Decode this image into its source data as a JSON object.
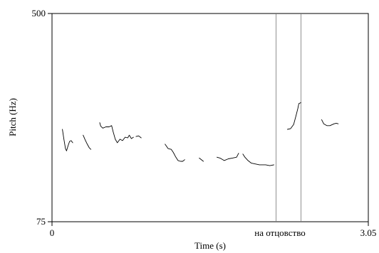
{
  "chart_data": {
    "type": "line",
    "ylabel": "Pitch (Hz)",
    "xlabel": "Time (s)",
    "xlim": [
      0,
      3.05
    ],
    "ylim": [
      75,
      500
    ],
    "x_tick_labels": [
      "0",
      "3.05"
    ],
    "y_tick_labels": [
      "75",
      "500"
    ],
    "annotation": "на отцовство",
    "selection_markers_s": [
      2.16,
      2.4
    ],
    "series": [
      {
        "points": [
          [
            0.1,
            174
          ],
          [
            0.115,
            159
          ],
          [
            0.13,
            146
          ],
          [
            0.14,
            143
          ],
          [
            0.155,
            150
          ],
          [
            0.17,
            156
          ],
          [
            0.185,
            157
          ],
          [
            0.2,
            154
          ]
        ]
      },
      {
        "points": [
          [
            0.3,
            165
          ],
          [
            0.32,
            158
          ],
          [
            0.34,
            152
          ],
          [
            0.36,
            147
          ],
          [
            0.375,
            145
          ]
        ]
      },
      {
        "points": [
          [
            0.46,
            185
          ],
          [
            0.47,
            179
          ],
          [
            0.49,
            176
          ],
          [
            0.52,
            178
          ],
          [
            0.55,
            178
          ],
          [
            0.575,
            180
          ]
        ]
      },
      {
        "points": [
          [
            0.575,
            180
          ],
          [
            0.59,
            170
          ],
          [
            0.61,
            159
          ],
          [
            0.63,
            154
          ],
          [
            0.655,
            159
          ],
          [
            0.68,
            157
          ],
          [
            0.705,
            162
          ],
          [
            0.73,
            161
          ],
          [
            0.745,
            165
          ],
          [
            0.765,
            160
          ],
          [
            0.785,
            162
          ]
        ]
      },
      {
        "points": [
          [
            0.81,
            163
          ],
          [
            0.835,
            164
          ],
          [
            0.86,
            161
          ]
        ]
      },
      {
        "points": [
          [
            1.09,
            152
          ],
          [
            1.12,
            146
          ],
          [
            1.15,
            145
          ],
          [
            1.17,
            141
          ],
          [
            1.19,
            136
          ],
          [
            1.215,
            131
          ],
          [
            1.24,
            130
          ],
          [
            1.26,
            130
          ],
          [
            1.28,
            132
          ]
        ]
      },
      {
        "points": [
          [
            1.42,
            134
          ],
          [
            1.46,
            130
          ]
        ]
      },
      {
        "points": [
          [
            1.59,
            135
          ],
          [
            1.62,
            134
          ],
          [
            1.66,
            131
          ],
          [
            1.7,
            133
          ],
          [
            1.74,
            134
          ],
          [
            1.78,
            135
          ],
          [
            1.8,
            140
          ]
        ]
      },
      {
        "points": [
          [
            1.84,
            139
          ],
          [
            1.86,
            135
          ],
          [
            1.89,
            131
          ],
          [
            1.92,
            128
          ],
          [
            1.96,
            127
          ],
          [
            2.0,
            126
          ],
          [
            2.06,
            126
          ],
          [
            2.1,
            125
          ],
          [
            2.14,
            126
          ]
        ]
      },
      {
        "points": [
          [
            2.27,
            174
          ],
          [
            2.3,
            175
          ],
          [
            2.33,
            182
          ],
          [
            2.35,
            195
          ],
          [
            2.37,
            210
          ],
          [
            2.38,
            220
          ],
          [
            2.4,
            222
          ]
        ]
      },
      {
        "points": [
          [
            2.6,
            190
          ],
          [
            2.62,
            183
          ],
          [
            2.65,
            180
          ],
          [
            2.68,
            180
          ],
          [
            2.72,
            183
          ],
          [
            2.74,
            184
          ],
          [
            2.76,
            183
          ]
        ]
      }
    ]
  }
}
